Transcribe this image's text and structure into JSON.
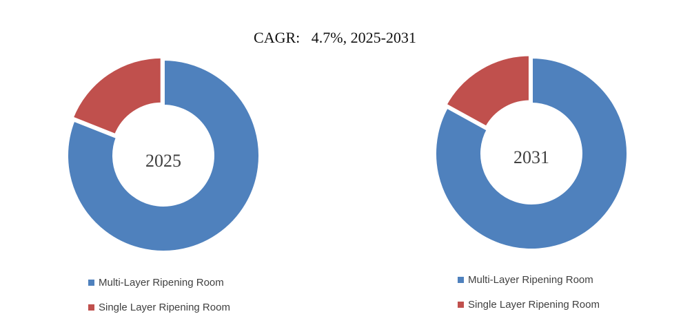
{
  "chart_data": {
    "type": "donut",
    "title": "CAGR:   4.7%, 2025-2031",
    "series_labels": [
      "Multi-Layer Ripening Room",
      "Single Layer Ripening Room"
    ],
    "colors": [
      "#4f81bd",
      "#c0504d"
    ],
    "charts": [
      {
        "label": "2025",
        "values": [
          81,
          19
        ]
      },
      {
        "label": "2031",
        "values": [
          83,
          17
        ]
      }
    ]
  }
}
